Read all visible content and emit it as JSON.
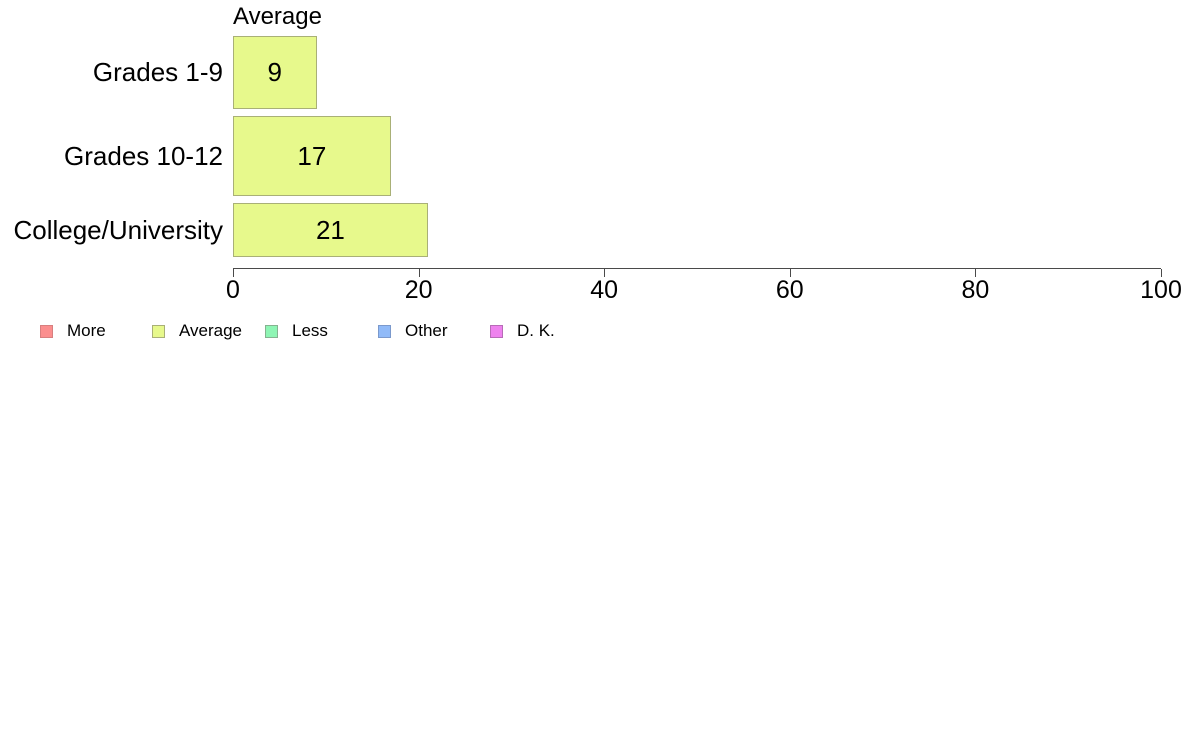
{
  "chart_data": {
    "type": "bar",
    "orientation": "horizontal",
    "title": "Average",
    "categories": [
      "Grades 1-9",
      "Grades 10-12",
      "College/University"
    ],
    "values": [
      9,
      17,
      21
    ],
    "value_labels": [
      "9",
      "17",
      "21"
    ],
    "xlabel": "",
    "ylabel": "",
    "xlim": [
      0,
      100
    ],
    "x_ticks": [
      "0",
      "20",
      "40",
      "60",
      "80",
      "100"
    ],
    "x_tick_values": [
      0,
      20,
      40,
      60,
      80,
      100
    ],
    "grid": false,
    "bar_fill": "#E7F98C",
    "bar_border": "#A9B077",
    "legend_position": "bottom-left",
    "legend": [
      {
        "label": "More",
        "fill": "#FB8E8E",
        "border": "#D77F7F"
      },
      {
        "label": "Average",
        "fill": "#E7F98C",
        "border": "#A9B077"
      },
      {
        "label": "Less",
        "fill": "#8EF5B4",
        "border": "#85B290"
      },
      {
        "label": "Other",
        "fill": "#90BAF8",
        "border": "#7B99CC"
      },
      {
        "label": "D. K.",
        "fill": "#EE82EE",
        "border": "#B76CB7"
      }
    ]
  }
}
